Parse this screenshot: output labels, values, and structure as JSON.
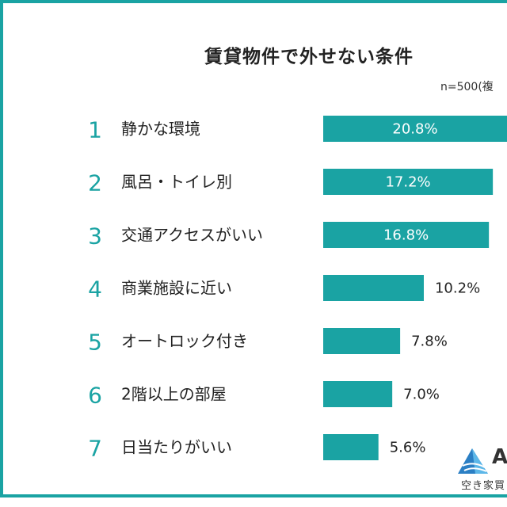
{
  "chart_data": {
    "type": "bar",
    "orientation": "horizontal",
    "title": "賃貸物件で外せない条件",
    "note": "n=500(複",
    "categories": [
      "静かな環境",
      "風呂・トイレ別",
      "交通アクセスがいい",
      "商業施設に近い",
      "オートロック付き",
      "2階以上の部屋",
      "日当たりがいい"
    ],
    "ranks": [
      "1",
      "2",
      "3",
      "4",
      "5",
      "6",
      "7"
    ],
    "values": [
      20.8,
      17.2,
      16.8,
      10.2,
      7.8,
      7.0,
      5.6
    ],
    "labels": [
      "20.8%",
      "17.2%",
      "16.8%",
      "10.2%",
      "7.8%",
      "7.0%",
      "5.6%"
    ],
    "unit": "%",
    "grid": false,
    "colors": {
      "bar": "#1aa3a3",
      "rank": "#1aa3a3",
      "frame": "#1aa3a3",
      "label_inside": "#ffffff",
      "label_outside": "#222222"
    }
  },
  "logo": {
    "letter": "A",
    "subtitle": "空き家買"
  }
}
